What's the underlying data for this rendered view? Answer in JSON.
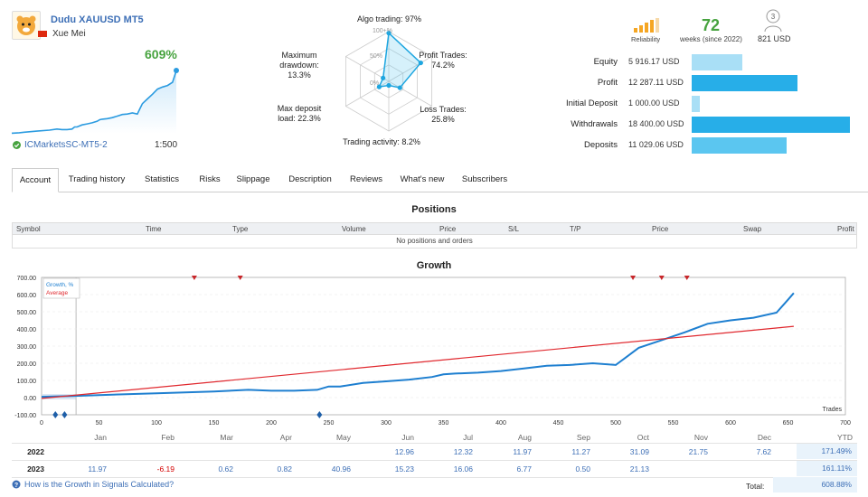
{
  "signal": {
    "name": "Dudu XAUUSD MT5",
    "author": "Xue Mei",
    "growth": "609%",
    "broker": "ICMarketsSC-MT5-2",
    "leverage": "1:500"
  },
  "radar": {
    "labels": {
      "algo": "Algo trading: 97%",
      "profit_trades": "Profit Trades:",
      "profit_trades_val": "74.2%",
      "loss_trades": "Loss Trades:",
      "loss_trades_val": "25.8%",
      "activity": "Trading activity: 8.2%",
      "max_load": "Max deposit",
      "max_load_2": "load: 22.3%",
      "max_dd": "Maximum",
      "max_dd_2": "drawdown:",
      "max_dd_3": "13.3%"
    },
    "rings": [
      "100+%",
      "50%",
      "0%"
    ],
    "values": {
      "algo": 97,
      "profit_trades": 74.2,
      "loss_trades": 25.8,
      "activity": 8.2,
      "max_load": 22.3,
      "max_dd": 13.3
    }
  },
  "stats": {
    "reliability_label": "Reliability",
    "weeks_value": "72",
    "weeks_label": "weeks (since 2022)",
    "subscribers_count": "3",
    "subscribers_label": "821 USD"
  },
  "finance": [
    {
      "label": "Equity",
      "value": "5 916.17 USD",
      "fraction": 0.32,
      "color": "#a9dff6"
    },
    {
      "label": "Profit",
      "value": "12 287.11 USD",
      "fraction": 0.67,
      "color": "#27aee8"
    },
    {
      "label": "Initial Deposit",
      "value": "1 000.00 USD",
      "fraction": 0.054,
      "color": "#a9dff6"
    },
    {
      "label": "Withdrawals",
      "value": "18 400.00 USD",
      "fraction": 1.0,
      "color": "#27aee8"
    },
    {
      "label": "Deposits",
      "value": "11 029.06 USD",
      "fraction": 0.6,
      "color": "#5bc6f0"
    }
  ],
  "tabs": [
    "Account",
    "Trading history",
    "Statistics",
    "Risks",
    "Slippage",
    "Description",
    "Reviews",
    "What's new",
    "Subscribers"
  ],
  "positions": {
    "title": "Positions",
    "columns": [
      "Symbol",
      "Time",
      "Type",
      "Volume",
      "Price",
      "S/L",
      "T/P",
      "Price",
      "Swap",
      "Profit"
    ],
    "empty_text": "No positions and orders"
  },
  "growth_title": "Growth",
  "chart_data": {
    "type": "line",
    "title": "Growth",
    "xlabel": "Trades",
    "ylabel": "",
    "xlim": [
      0,
      700
    ],
    "ylim": [
      -100,
      700
    ],
    "x_ticks": [
      "0",
      "50",
      "100",
      "150",
      "200",
      "250",
      "300",
      "350",
      "400",
      "450",
      "500",
      "550",
      "600",
      "650",
      "700"
    ],
    "y_ticks": [
      "700.00",
      "600.00",
      "500.00",
      "400.00",
      "300.00",
      "200.00",
      "100.00",
      "0.00",
      "-100.00"
    ],
    "legend": [
      "Growth, %",
      "Average"
    ],
    "series": [
      {
        "name": "Growth, %",
        "x": [
          0,
          30,
          50,
          100,
          150,
          180,
          200,
          220,
          240,
          250,
          260,
          280,
          300,
          320,
          340,
          350,
          360,
          380,
          400,
          420,
          440,
          460,
          480,
          500,
          510,
          520,
          540,
          560,
          580,
          600,
          620,
          640,
          650,
          655
        ],
        "y": [
          5,
          10,
          15,
          25,
          35,
          45,
          40,
          40,
          45,
          65,
          65,
          85,
          95,
          105,
          120,
          135,
          140,
          145,
          155,
          170,
          185,
          190,
          200,
          190,
          240,
          290,
          335,
          380,
          430,
          450,
          465,
          495,
          570,
          609
        ]
      },
      {
        "name": "Average",
        "x": [
          0,
          655
        ],
        "y": [
          -5,
          415
        ]
      }
    ],
    "markers_top_x": [
      133,
      173,
      515,
      540,
      562
    ],
    "markers_bottom_x": [
      12,
      20,
      242
    ]
  },
  "yearly": {
    "months": [
      "Jan",
      "Feb",
      "Mar",
      "Apr",
      "May",
      "Jun",
      "Jul",
      "Aug",
      "Sep",
      "Oct",
      "Nov",
      "Dec",
      "YTD"
    ],
    "rows": [
      {
        "year": "2022",
        "values": [
          "",
          "",
          "",
          "",
          "",
          "12.96",
          "12.32",
          "11.97",
          "11.27",
          "31.09",
          "21.75",
          "7.62",
          "171.49%"
        ]
      },
      {
        "year": "2023",
        "values": [
          "11.97",
          "-6.19",
          "0.62",
          "0.82",
          "40.96",
          "15.23",
          "16.06",
          "6.77",
          "0.50",
          "21.13",
          "",
          "",
          "161.11%"
        ]
      }
    ],
    "question": "How is the Growth in Signals Calculated?",
    "total_label": "Total:",
    "total_value": "608.88%"
  }
}
